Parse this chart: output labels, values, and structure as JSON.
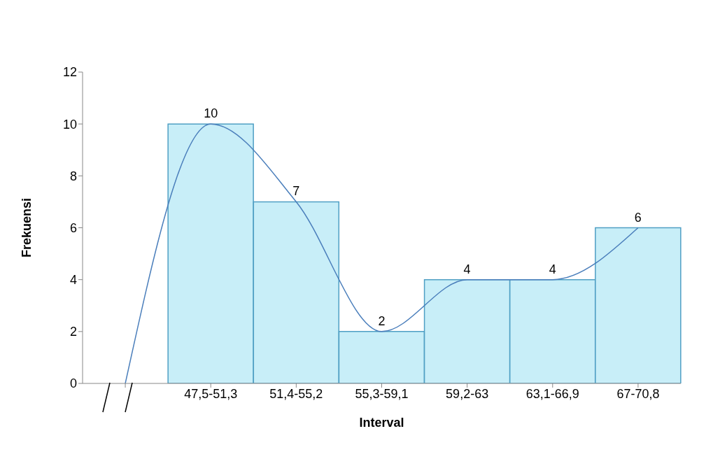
{
  "chart_data": {
    "type": "bar",
    "xlabel": "Interval",
    "ylabel": "Frekuensi",
    "categories": [
      null,
      "47,5-51,3",
      "51,4-55,2",
      "55,3-59,1",
      "59,2-63",
      "63,1-66,9",
      "67-70,8"
    ],
    "series": [
      {
        "type": "bar",
        "color": "#c8eef8",
        "values": [
          null,
          10,
          7,
          2,
          4,
          4,
          6
        ],
        "value_labels": [
          null,
          "10",
          "7",
          "2",
          "4",
          "4",
          "6"
        ]
      },
      {
        "type": "line",
        "color": "#4a7ebb",
        "values": [
          0,
          10,
          7,
          2,
          4,
          4,
          6
        ]
      }
    ],
    "ylim": [
      0,
      12
    ],
    "yticks": [
      0,
      2,
      4,
      6,
      8,
      10,
      12
    ],
    "marker": "none"
  }
}
